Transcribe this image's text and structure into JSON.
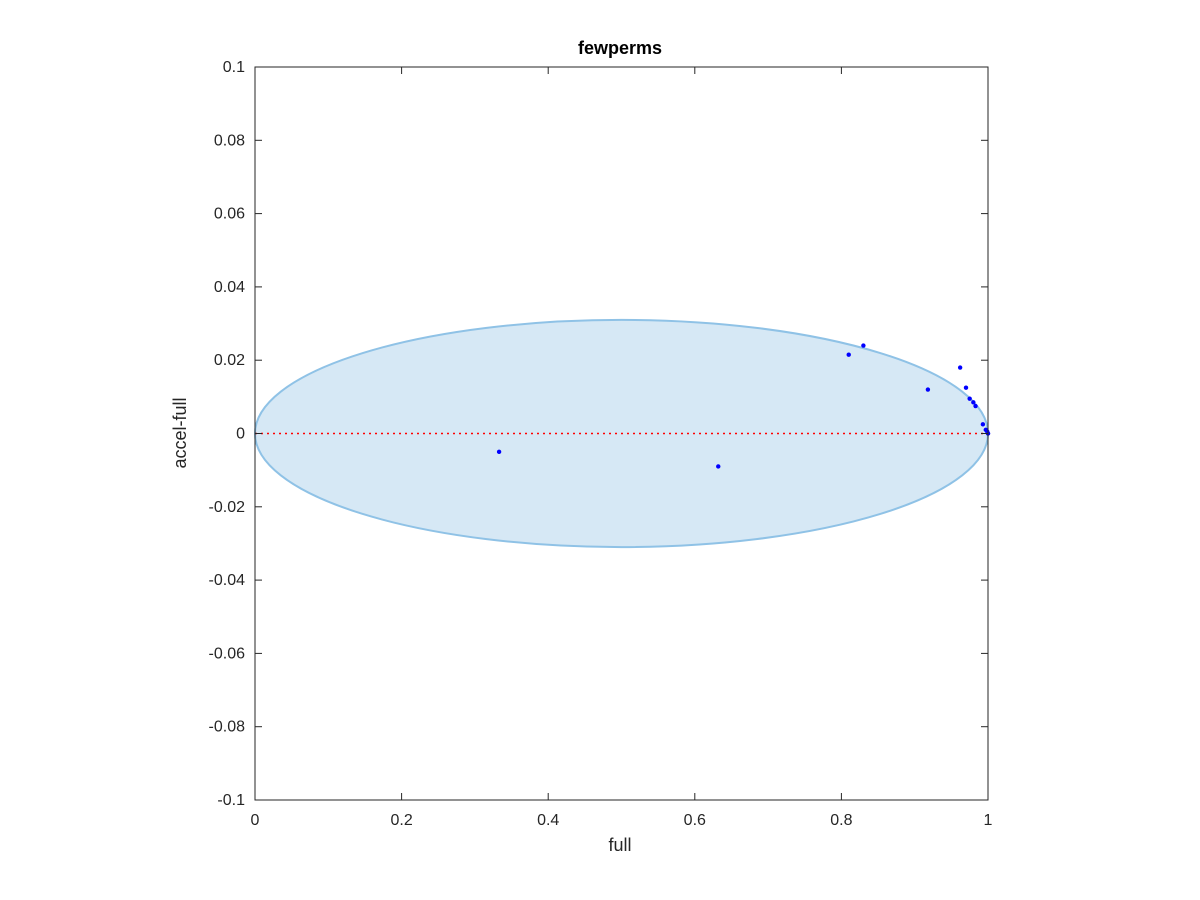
{
  "chart_data": {
    "type": "scatter",
    "title": "fewperms",
    "xlabel": "full",
    "ylabel": "accel-full",
    "xlim": [
      0,
      1
    ],
    "ylim": [
      -0.1,
      0.1
    ],
    "xticks": [
      0,
      0.2,
      0.4,
      0.6,
      0.8,
      1
    ],
    "xtick_labels": [
      "0",
      "0.2",
      "0.4",
      "0.6",
      "0.8",
      "1"
    ],
    "yticks": [
      0.1,
      0.08,
      0.06,
      0.04,
      0.02,
      0,
      -0.02,
      -0.04,
      -0.06,
      -0.08,
      -0.1
    ],
    "ytick_labels": [
      "0.1",
      "0.08",
      "0.06",
      "0.04",
      "0.02",
      "0",
      "-0.02",
      "-0.04",
      "-0.06",
      "-0.08",
      "-0.1"
    ],
    "grid": false,
    "legend": "none",
    "points": {
      "x": [
        0.333,
        0.632,
        0.81,
        0.83,
        0.918,
        0.962,
        0.97,
        0.975,
        0.98,
        0.983,
        0.993,
        0.997,
        0.999,
        1.0,
        1.0
      ],
      "y": [
        -0.005,
        -0.009,
        0.0215,
        0.024,
        0.012,
        0.018,
        0.0125,
        0.0095,
        0.0085,
        0.0075,
        0.0025,
        0.001,
        0.0005,
        0.0,
        0.0
      ],
      "color": "#0000ff"
    },
    "ellipse": {
      "center": [
        0.5,
        0.0
      ],
      "semi_axis_x": 0.5,
      "semi_axis_y": 0.031,
      "fill": "#d6e8f5",
      "stroke": "#8fc2e6"
    },
    "reference_line": {
      "y": 0,
      "x_range": [
        0,
        1
      ],
      "color": "#ff0000",
      "style": "dotted"
    },
    "axes_color": "#262626"
  }
}
